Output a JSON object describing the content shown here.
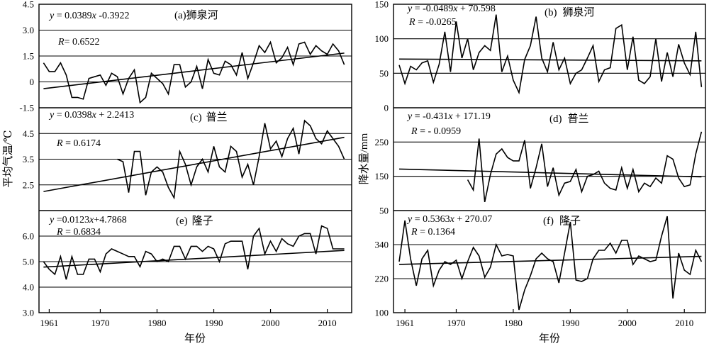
{
  "figure": {
    "left": {
      "ylabel": "平均气温/℃",
      "xlabel": "年份",
      "xticks": [
        "1961",
        "1970",
        "1980",
        "1990",
        "2000",
        "2010"
      ]
    },
    "right": {
      "ylabel": "降水量/mm",
      "xlabel": "年份",
      "xticks": [
        "1961",
        "1970",
        "1980",
        "1990",
        "2000",
        "2010"
      ]
    }
  },
  "chart_data": [
    {
      "id": "a",
      "type": "line",
      "column": "left",
      "row": 0,
      "tag": "(a)",
      "station": "狮泉河",
      "equation": {
        "prefix": "y",
        "body": " = 0.0389",
        "var": "x",
        "tail": " -0.3922"
      },
      "r_text": {
        "letter": "R",
        "body": "= 0.6522"
      },
      "yticks": [
        "4.5",
        "3.0",
        "1.5",
        "0",
        "-1.5"
      ],
      "ytick_values": [
        4.5,
        3.0,
        1.5,
        0,
        -1.5
      ],
      "ylim": [
        -1.5,
        4.5
      ],
      "trend": {
        "slope": 0.0389,
        "intercept": -0.3922,
        "x0": 1960,
        "x1": 2013
      },
      "x": [
        1960,
        1961,
        1962,
        1963,
        1964,
        1965,
        1966,
        1967,
        1968,
        1969,
        1970,
        1971,
        1972,
        1973,
        1974,
        1975,
        1976,
        1977,
        1978,
        1979,
        1980,
        1981,
        1982,
        1983,
        1984,
        1985,
        1986,
        1987,
        1988,
        1989,
        1990,
        1991,
        1992,
        1993,
        1994,
        1995,
        1996,
        1997,
        1998,
        1999,
        2000,
        2001,
        2002,
        2003,
        2004,
        2005,
        2006,
        2007,
        2008,
        2009,
        2010,
        2011,
        2012,
        2013
      ],
      "y": [
        1.1,
        0.6,
        0.6,
        1.1,
        0.4,
        -0.9,
        -0.9,
        -1.0,
        0.2,
        0.3,
        0.4,
        -0.2,
        0.5,
        0.3,
        -0.7,
        0.2,
        0.7,
        -1.2,
        -0.9,
        0.5,
        0.2,
        -0.1,
        -0.7,
        1.0,
        1.0,
        -0.3,
        0.0,
        0.9,
        -0.4,
        1.3,
        0.5,
        0.4,
        1.2,
        1.0,
        0.4,
        1.7,
        0.2,
        1.1,
        2.1,
        1.7,
        2.3,
        1.1,
        1.4,
        2.0,
        1.0,
        2.2,
        2.3,
        1.6,
        2.1,
        1.8,
        1.6,
        2.2,
        1.8,
        1.0
      ]
    },
    {
      "id": "b",
      "type": "line",
      "column": "right",
      "row": 0,
      "tag": "(b)",
      "station": "狮泉河",
      "equation": {
        "prefix": "y",
        "body": " = -0.0489",
        "var": "x",
        "tail": " + 70.598"
      },
      "r_text": {
        "letter": "R",
        "body": " = -0.0265"
      },
      "yticks": [
        "150",
        "100",
        "50",
        "0"
      ],
      "ytick_values": [
        150,
        100,
        50,
        0
      ],
      "ylim": [
        0,
        150
      ],
      "trend": {
        "slope": -0.0489,
        "intercept": 70.598,
        "x0": 1960,
        "x1": 2013
      },
      "x": [
        1960,
        1961,
        1962,
        1963,
        1964,
        1965,
        1966,
        1967,
        1968,
        1969,
        1970,
        1971,
        1972,
        1973,
        1974,
        1975,
        1976,
        1977,
        1978,
        1979,
        1980,
        1981,
        1982,
        1983,
        1984,
        1985,
        1986,
        1987,
        1988,
        1989,
        1990,
        1991,
        1992,
        1993,
        1994,
        1995,
        1996,
        1997,
        1998,
        1999,
        2000,
        2001,
        2002,
        2003,
        2004,
        2005,
        2006,
        2007,
        2008,
        2009,
        2010,
        2011,
        2012,
        2013
      ],
      "y": [
        62,
        35,
        60,
        55,
        65,
        68,
        37,
        63,
        110,
        52,
        125,
        72,
        100,
        55,
        80,
        90,
        83,
        135,
        52,
        75,
        40,
        22,
        70,
        90,
        132,
        72,
        52,
        95,
        55,
        72,
        35,
        50,
        55,
        72,
        90,
        38,
        55,
        58,
        115,
        120,
        55,
        103,
        40,
        35,
        45,
        100,
        38,
        80,
        45,
        92,
        65,
        48,
        110,
        30
      ]
    },
    {
      "id": "c",
      "type": "line",
      "column": "left",
      "row": 1,
      "tag": "(c)",
      "station": "普兰",
      "equation": {
        "prefix": "y",
        "body": " = 0.0398",
        "var": "x",
        "tail": " + 2.2413"
      },
      "r_text": {
        "letter": "R",
        "body": " = 0.6174"
      },
      "yticks": [
        "4.5",
        "3.5",
        "2.5"
      ],
      "ytick_values": [
        4.5,
        3.5,
        2.5
      ],
      "ylim": [
        1.5,
        5.5
      ],
      "trend": {
        "slope": 0.0398,
        "intercept": 2.2413,
        "x0": 1960,
        "x1": 2013
      },
      "x": [
        1973,
        1974,
        1975,
        1976,
        1977,
        1978,
        1979,
        1980,
        1981,
        1982,
        1983,
        1984,
        1985,
        1986,
        1987,
        1988,
        1989,
        1990,
        1991,
        1992,
        1993,
        1994,
        1995,
        1996,
        1997,
        1998,
        1999,
        2000,
        2001,
        2002,
        2003,
        2004,
        2005,
        2006,
        2007,
        2008,
        2009,
        2010,
        2011,
        2012,
        2013
      ],
      "y": [
        3.5,
        3.4,
        2.2,
        3.8,
        3.8,
        2.1,
        3.0,
        3.2,
        3.0,
        2.4,
        2.0,
        3.8,
        3.3,
        2.5,
        3.2,
        3.5,
        3.0,
        4.0,
        3.2,
        3.0,
        4.0,
        3.8,
        2.8,
        3.3,
        2.5,
        3.6,
        4.9,
        3.9,
        4.2,
        3.6,
        4.3,
        4.7,
        3.7,
        5.0,
        4.8,
        4.3,
        4.1,
        4.6,
        4.3,
        4.0,
        3.5
      ]
    },
    {
      "id": "d",
      "type": "line",
      "column": "right",
      "row": 1,
      "tag": "(d)",
      "station": "普兰",
      "equation": {
        "prefix": "y",
        "body": " = -0.431",
        "var": "x",
        "tail": " + 171.19"
      },
      "r_text": {
        "letter": "R",
        "body": " = - 0.0959"
      },
      "yticks": [
        "250",
        "150",
        "50"
      ],
      "ytick_values": [
        250,
        150,
        50
      ],
      "ylim": [
        50,
        350
      ],
      "trend": {
        "slope": -0.431,
        "intercept": 171.19,
        "x0": 1960,
        "x1": 2013
      },
      "x": [
        1972,
        1973,
        1974,
        1975,
        1976,
        1977,
        1978,
        1979,
        1980,
        1981,
        1982,
        1983,
        1984,
        1985,
        1986,
        1987,
        1988,
        1989,
        1990,
        1991,
        1992,
        1993,
        1994,
        1995,
        1996,
        1997,
        1998,
        1999,
        2000,
        2001,
        2002,
        2003,
        2004,
        2005,
        2006,
        2007,
        2008,
        2009,
        2010,
        2011,
        2012,
        2013
      ],
      "y": [
        140,
        110,
        260,
        75,
        155,
        215,
        230,
        205,
        195,
        195,
        255,
        115,
        175,
        245,
        120,
        175,
        95,
        130,
        135,
        170,
        105,
        150,
        155,
        165,
        130,
        115,
        110,
        175,
        115,
        170,
        105,
        130,
        120,
        145,
        130,
        210,
        200,
        145,
        120,
        125,
        215,
        280
      ]
    },
    {
      "id": "e",
      "type": "line",
      "column": "left",
      "row": 2,
      "tag": "(e)",
      "station": "隆子",
      "equation": {
        "prefix": "y",
        "body": " =0.0123",
        "var": "x",
        "tail": "+4.7868"
      },
      "r_text": {
        "letter": "R",
        "body": " = 0.6834"
      },
      "yticks": [
        "6.0",
        "5.0",
        "4.0",
        "3.0"
      ],
      "ytick_values": [
        6.0,
        5.0,
        4.0,
        3.0
      ],
      "ylim": [
        3.0,
        7.0
      ],
      "trend": {
        "slope": 0.0123,
        "intercept": 4.7868,
        "x0": 1960,
        "x1": 2013
      },
      "x": [
        1960,
        1961,
        1962,
        1963,
        1964,
        1965,
        1966,
        1967,
        1968,
        1969,
        1970,
        1971,
        1972,
        1973,
        1974,
        1975,
        1976,
        1977,
        1978,
        1979,
        1980,
        1981,
        1982,
        1983,
        1984,
        1985,
        1986,
        1987,
        1988,
        1989,
        1990,
        1991,
        1992,
        1993,
        1994,
        1995,
        1996,
        1997,
        1998,
        1999,
        2000,
        2001,
        2002,
        2003,
        2004,
        2005,
        2006,
        2007,
        2008,
        2009,
        2010,
        2011,
        2012,
        2013
      ],
      "y": [
        5.0,
        4.7,
        4.5,
        5.2,
        4.3,
        5.2,
        4.5,
        4.5,
        5.1,
        5.1,
        4.6,
        5.3,
        5.5,
        5.4,
        5.3,
        5.2,
        5.2,
        4.8,
        5.4,
        5.3,
        5.0,
        5.1,
        5.0,
        5.6,
        5.6,
        5.1,
        5.6,
        5.6,
        5.4,
        5.6,
        5.5,
        5.0,
        5.7,
        5.8,
        5.8,
        5.8,
        4.7,
        6.0,
        6.3,
        5.3,
        5.8,
        5.4,
        5.9,
        5.7,
        5.6,
        6.0,
        6.1,
        6.1,
        5.3,
        6.4,
        6.3,
        5.5,
        5.5,
        5.5
      ]
    },
    {
      "id": "f",
      "type": "line",
      "column": "right",
      "row": 2,
      "tag": "(f)",
      "station": "隆子",
      "equation": {
        "prefix": "y",
        "body": " = 0.5363",
        "var": "x",
        "tail": " + 270.07"
      },
      "r_text": {
        "letter": "R",
        "body": " = 0.1364"
      },
      "yticks": [
        "340",
        "220",
        "100"
      ],
      "ytick_values": [
        340,
        220,
        100
      ],
      "ylim": [
        100,
        460
      ],
      "trend": {
        "slope": 0.5363,
        "intercept": 270.07,
        "x0": 1960,
        "x1": 2013
      },
      "x": [
        1960,
        1961,
        1962,
        1963,
        1964,
        1965,
        1966,
        1967,
        1968,
        1969,
        1970,
        1971,
        1972,
        1973,
        1974,
        1975,
        1976,
        1977,
        1978,
        1979,
        1980,
        1981,
        1982,
        1983,
        1984,
        1985,
        1986,
        1987,
        1988,
        1989,
        1990,
        1991,
        1992,
        1993,
        1994,
        1995,
        1996,
        1997,
        1998,
        1999,
        2000,
        2001,
        2002,
        2003,
        2004,
        2005,
        2006,
        2007,
        2008,
        2009,
        2010,
        2011,
        2012,
        2013
      ],
      "y": [
        280,
        425,
        290,
        195,
        290,
        320,
        195,
        250,
        280,
        270,
        285,
        220,
        280,
        330,
        300,
        225,
        260,
        340,
        300,
        305,
        300,
        110,
        180,
        230,
        290,
        310,
        290,
        280,
        205,
        310,
        420,
        215,
        210,
        220,
        290,
        320,
        320,
        345,
        310,
        355,
        355,
        270,
        300,
        290,
        280,
        285,
        370,
        440,
        150,
        310,
        250,
        235,
        320,
        280
      ]
    }
  ]
}
